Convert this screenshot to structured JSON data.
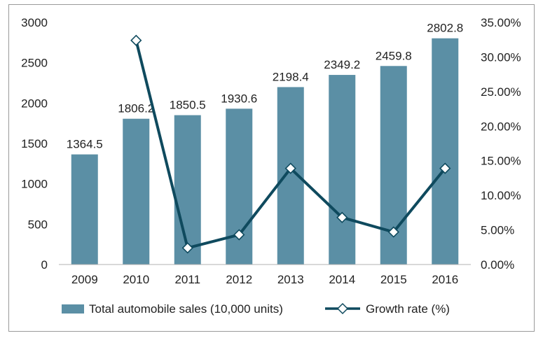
{
  "chart_data": {
    "type": "bar",
    "categories": [
      "2009",
      "2010",
      "2011",
      "2012",
      "2013",
      "2014",
      "2015",
      "2016"
    ],
    "series": [
      {
        "name": "Total automobile sales (10,000 units)",
        "type": "bar",
        "axis": "left",
        "color": "#5b8fa5",
        "values": [
          1364.5,
          1806.2,
          1850.5,
          1930.6,
          2198.4,
          2349.2,
          2459.8,
          2802.8
        ],
        "labels": [
          "1364.5",
          "1806.2",
          "1850.5",
          "1930.6",
          "2198.4",
          "2349.2",
          "2459.8",
          "2802.8"
        ]
      },
      {
        "name": "Growth rate (%)",
        "type": "line",
        "axis": "right",
        "color": "#0f4a5e",
        "marker": "diamond",
        "values": [
          null,
          32.4,
          2.4,
          4.3,
          13.9,
          6.8,
          4.7,
          13.9
        ]
      }
    ],
    "y_left": {
      "lim": [
        0,
        3000
      ],
      "ticks": [
        "0",
        "500",
        "1000",
        "1500",
        "2000",
        "2500",
        "3000"
      ]
    },
    "y_right": {
      "lim": [
        0,
        35
      ],
      "ticks": [
        "0.00%",
        "5.00%",
        "10.00%",
        "15.00%",
        "20.00%",
        "25.00%",
        "30.00%",
        "35.00%"
      ]
    },
    "grid": false,
    "legend": "bottom"
  }
}
